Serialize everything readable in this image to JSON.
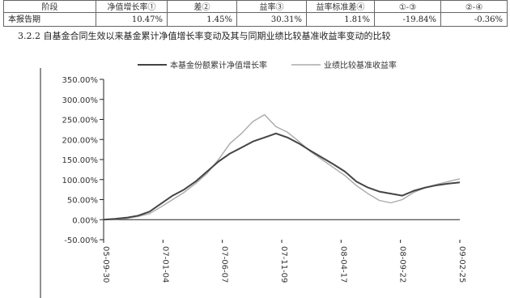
{
  "table": {
    "header": [
      "阶段",
      "净值增长率①",
      "差②",
      "益率③",
      "益率标准差④",
      "①-③",
      "②-④"
    ],
    "row": [
      "本报告期",
      "10.47%",
      "1.45%",
      "30.31%",
      "1.81%",
      "-19.84%",
      "-0.36%"
    ]
  },
  "section_title": "3.2.2 自基金合同生效以来基金累计净值增长率变动及其与同期业绩比较基准收益率变动的比较",
  "chart_data": {
    "type": "line",
    "legend": [
      "本基金份额累计净值增长率",
      "业绩比较基准收益率"
    ],
    "y_ticks": [
      "350.00%",
      "300.00%",
      "250.00%",
      "200.00%",
      "150.00%",
      "100.00%",
      "50.00%",
      "0.00%",
      "-50.00%"
    ],
    "x_ticks": [
      "05-09-30",
      "07-01-04",
      "07-06-07",
      "07-11-09",
      "08-04-17",
      "08-09-22",
      "09-02-25"
    ],
    "ylim": [
      -50,
      350
    ],
    "series": [
      {
        "name": "本基金份额累计净值增长率",
        "color": "#444444",
        "values": [
          0,
          2,
          5,
          10,
          20,
          40,
          60,
          75,
          95,
          120,
          145,
          165,
          180,
          195,
          205,
          215,
          205,
          190,
          172,
          155,
          138,
          120,
          95,
          80,
          70,
          65,
          60,
          72,
          80,
          86,
          90,
          93
        ]
      },
      {
        "name": "业绩比较基准收益率",
        "color": "#aaaaaa",
        "values": [
          0,
          1,
          3,
          8,
          15,
          32,
          50,
          68,
          90,
          115,
          150,
          190,
          215,
          245,
          262,
          232,
          218,
          195,
          170,
          150,
          130,
          110,
          85,
          65,
          48,
          42,
          50,
          68,
          80,
          88,
          95,
          102
        ]
      }
    ]
  }
}
